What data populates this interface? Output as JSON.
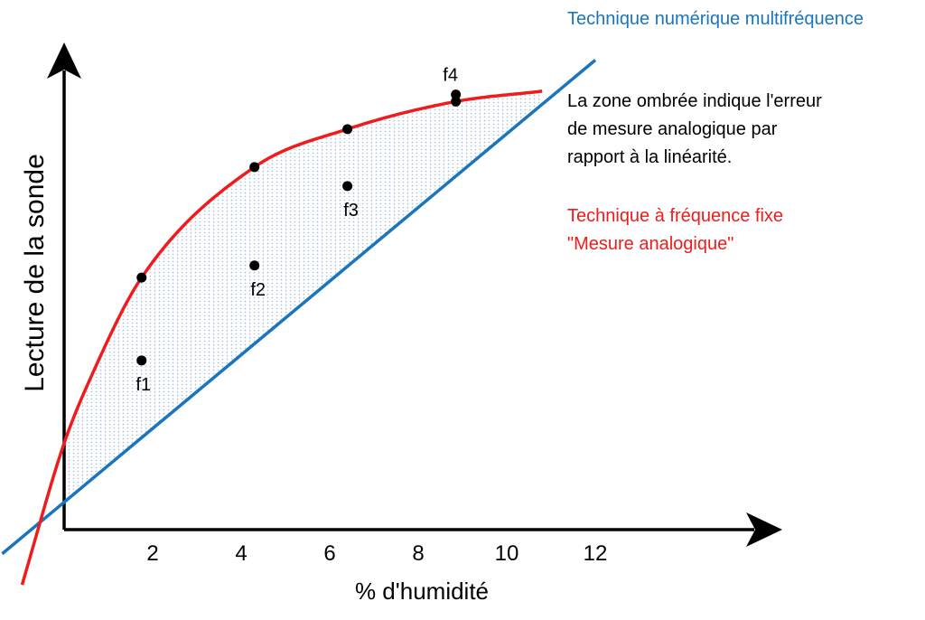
{
  "chart_data": {
    "type": "line",
    "title": "",
    "xlabel": "% d'humidité",
    "ylabel": "Lecture de la sonde",
    "x_ticks": [
      2,
      4,
      6,
      8,
      10,
      12
    ],
    "xlim": [
      0,
      14.5
    ],
    "series": [
      {
        "name": "Technique numérique multifréquence",
        "color": "#1a75bc",
        "kind": "linear",
        "x": [
          -1.4,
          12.0
        ],
        "y": [
          -0.7,
          13.6
        ]
      },
      {
        "name": "Technique à fréquence fixe \"Mesure analogique\"",
        "color": "#ee1c1c",
        "kind": "curve",
        "x": [
          -0.95,
          0.0,
          0.6,
          1.75,
          4.3,
          6.4,
          8.85,
          10.8
        ],
        "y": [
          -1.6,
          2.5,
          4.4,
          7.3,
          10.5,
          11.6,
          12.4,
          12.7
        ]
      }
    ],
    "points": [
      {
        "label": "f1",
        "x": 1.75,
        "y": 4.9
      },
      {
        "label": "f2",
        "x": 4.3,
        "y": 7.65
      },
      {
        "label": "f3",
        "x": 6.4,
        "y": 9.95
      },
      {
        "label": "f4",
        "x": 8.85,
        "y": 12.6
      },
      {
        "label": "",
        "x": 1.75,
        "y": 7.3
      },
      {
        "label": "",
        "x": 4.3,
        "y": 10.5
      },
      {
        "label": "",
        "x": 6.4,
        "y": 11.6
      },
      {
        "label": "",
        "x": 8.85,
        "y": 12.4
      }
    ],
    "shaded_between": "series",
    "annotations": {
      "blue_label": "Technique numérique multifréquence",
      "red_label_line1": "Technique à fréquence fixe",
      "red_label_line2": "\"Mesure analogique\"",
      "note_line1": "La zone ombrée indique l'erreur",
      "note_line2": "de mesure analogique par",
      "note_line3": "rapport à la linéarité."
    },
    "colors": {
      "blue": "#1a75bc",
      "red": "#ee1c1c",
      "shade": "#a8c4e4",
      "axis": "#000000"
    }
  }
}
